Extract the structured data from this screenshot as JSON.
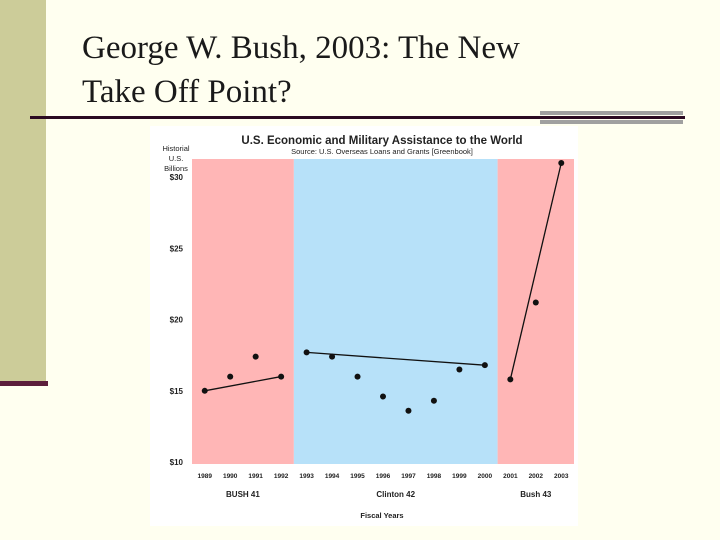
{
  "slide": {
    "title_line1": "George W. Bush, 2003: The New",
    "title_line2": "Take Off Point?"
  },
  "colors": {
    "background": "#fffff0",
    "accent_bar": "#cccc99",
    "rule": "#5c1e3b",
    "republican_band": "#ffb6b6",
    "democrat_band": "#b7e1f9"
  },
  "chart_data": {
    "type": "scatter",
    "title": "U.S. Economic and Military Assistance to the World",
    "subtitle": "Source: U.S. Overseas Loans and Grants [Greenbook]",
    "ylabel": [
      "Historial",
      "U.S.",
      "Billions"
    ],
    "xlabel": "Fiscal Years",
    "ylim": [
      10,
      31
    ],
    "yticks": [
      {
        "v": 10,
        "label": "$10"
      },
      {
        "v": 15,
        "label": "$15"
      },
      {
        "v": 20,
        "label": "$20"
      },
      {
        "v": 25,
        "label": "$25"
      },
      {
        "v": 30,
        "label": "$30"
      }
    ],
    "categories": [
      "1989",
      "1990",
      "1991",
      "1992",
      "1993",
      "1994",
      "1995",
      "1996",
      "1997",
      "1998",
      "1999",
      "2000",
      "2001",
      "2002",
      "2003"
    ],
    "values": [
      15.0,
      16.0,
      17.4,
      16.0,
      17.7,
      17.4,
      16.0,
      14.6,
      13.6,
      14.3,
      16.5,
      16.8,
      15.8,
      21.2,
      31.0
    ],
    "eras": [
      {
        "label": "BUSH 41",
        "start": 0,
        "end": 3,
        "color": "#ffb6b6"
      },
      {
        "label": "Clinton 42",
        "start": 4,
        "end": 11,
        "color": "#b7e1f9"
      },
      {
        "label": "Bush 43",
        "start": 12,
        "end": 14,
        "color": "#ffb6b6"
      }
    ],
    "trend_lines": [
      {
        "from": {
          "i": 0,
          "v": 15.0
        },
        "to": {
          "i": 3,
          "v": 16.0
        }
      },
      {
        "from": {
          "i": 4,
          "v": 17.7
        },
        "to": {
          "i": 11,
          "v": 16.8
        }
      },
      {
        "from": {
          "i": 12,
          "v": 15.8
        },
        "to": {
          "i": 14,
          "v": 31.0
        }
      }
    ]
  }
}
